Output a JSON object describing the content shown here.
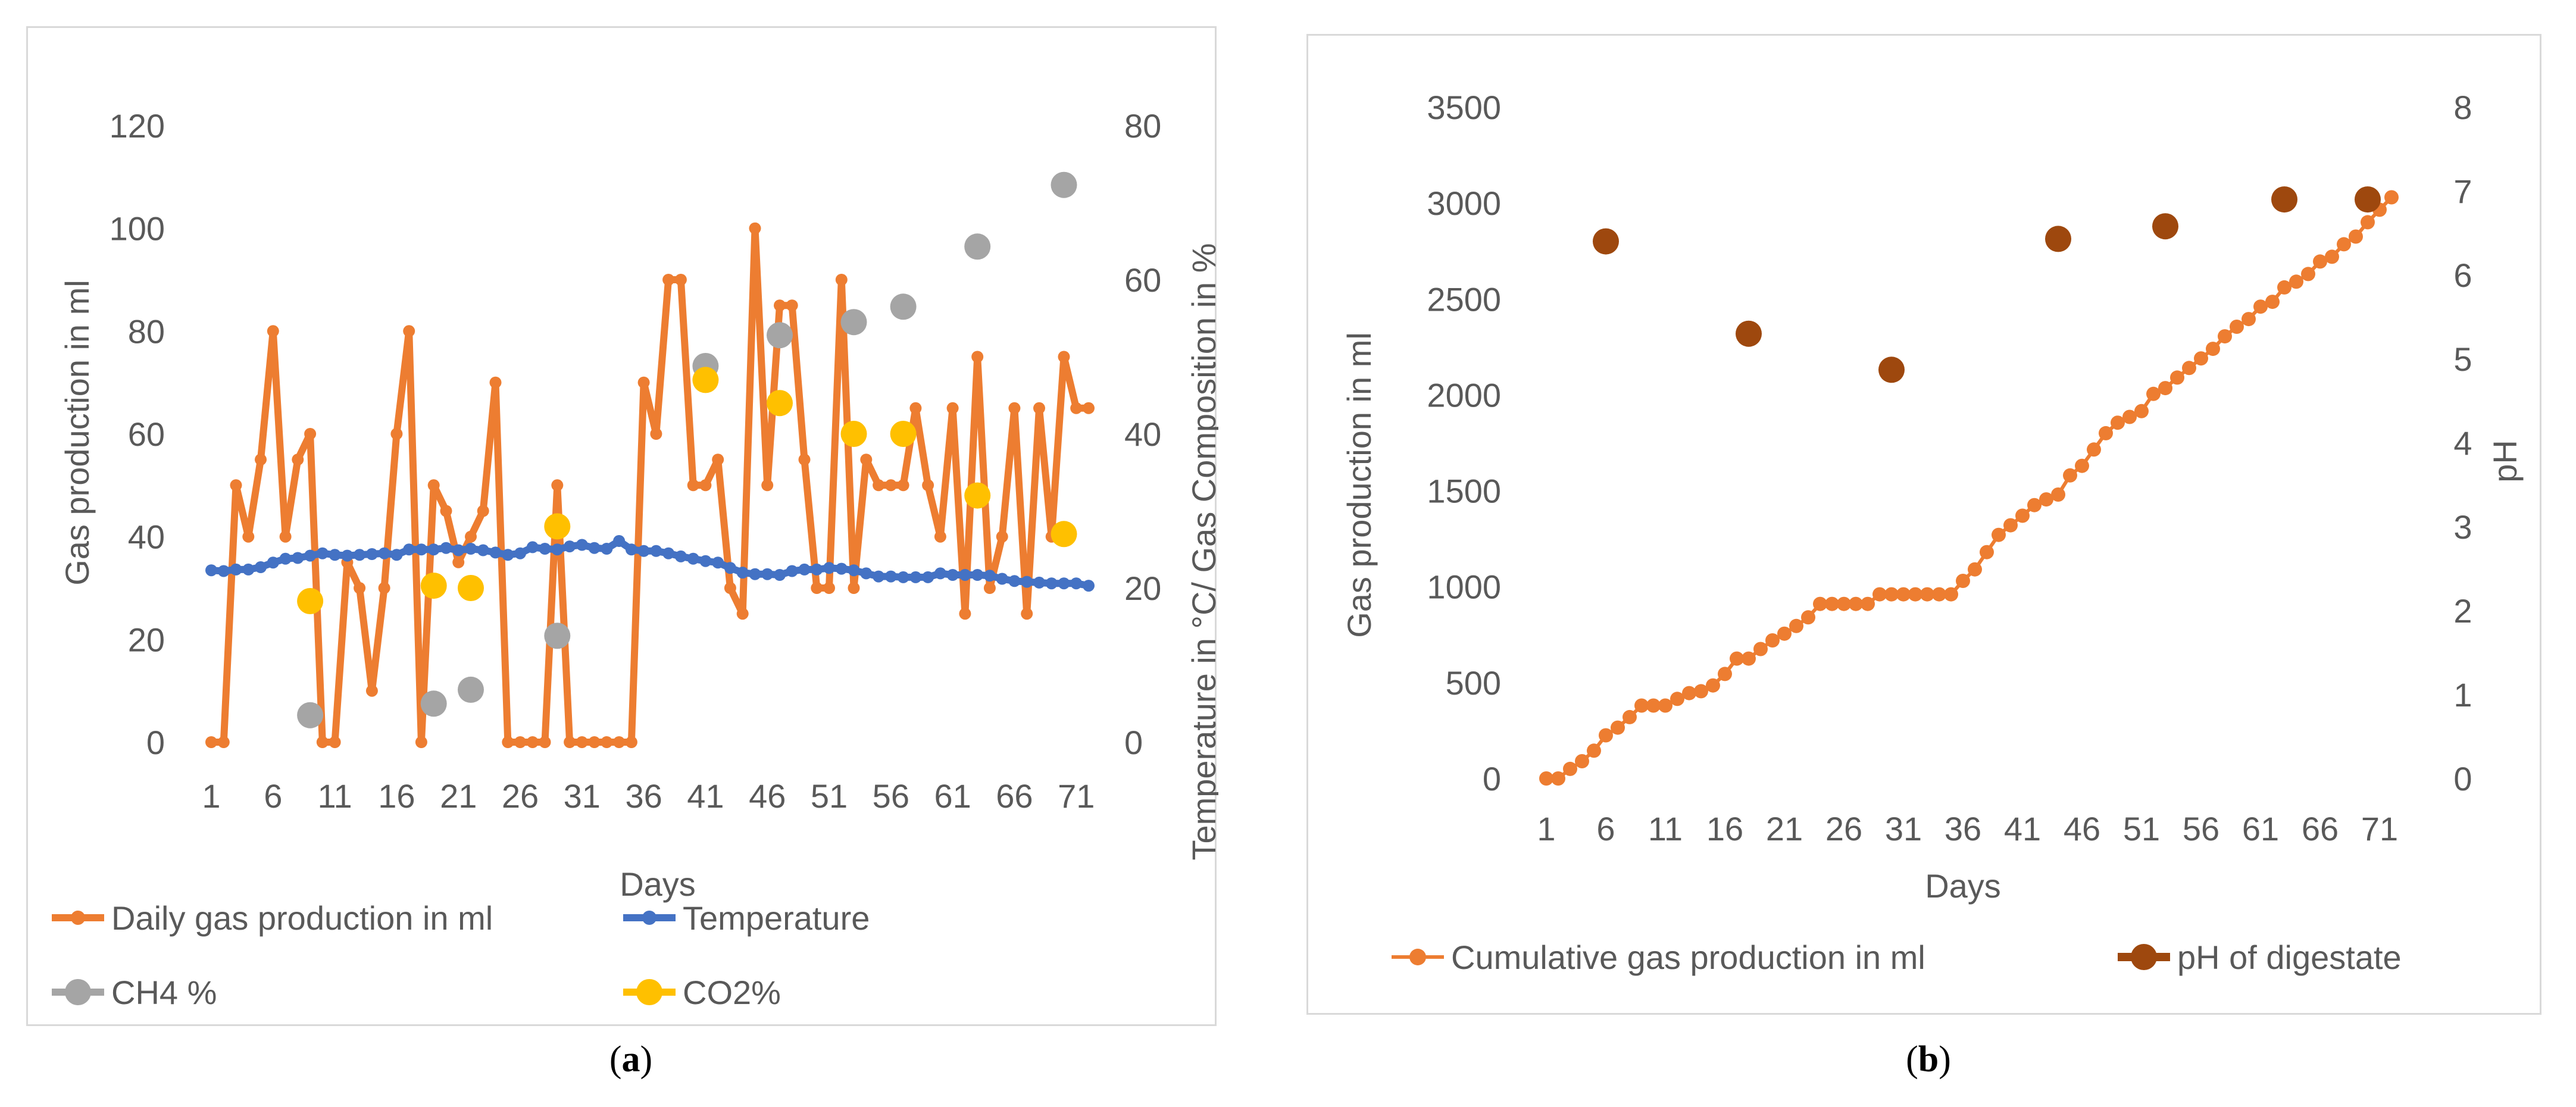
{
  "chart_data": [
    {
      "type": "line",
      "panel_label": "a",
      "xlabel": "Days",
      "ylabel_left": "Gas production in ml",
      "ylabel_right": "Temperature in °C/  Gas Composition in %",
      "ylim_left": [
        0,
        120
      ],
      "yticks_left": [
        "0",
        "20",
        "40",
        "60",
        "80",
        "100",
        "120"
      ],
      "ylim_right": [
        0,
        80
      ],
      "yticks_right": [
        "0",
        "20",
        "40",
        "60",
        "80"
      ],
      "xticks": [
        "1",
        "6",
        "11",
        "16",
        "21",
        "26",
        "31",
        "36",
        "41",
        "46",
        "51",
        "56",
        "61",
        "66",
        "71"
      ],
      "legend_position": "bottom",
      "series": [
        {
          "name": "Daily gas production in ml",
          "axis": "left",
          "color": "#ED7D31",
          "style": "line-marker",
          "x": [
            1,
            2,
            3,
            4,
            5,
            6,
            7,
            8,
            9,
            10,
            11,
            12,
            13,
            14,
            15,
            16,
            17,
            18,
            19,
            20,
            21,
            22,
            23,
            24,
            25,
            26,
            27,
            28,
            29,
            30,
            31,
            32,
            33,
            34,
            35,
            36,
            37,
            38,
            39,
            40,
            41,
            42,
            43,
            44,
            45,
            46,
            47,
            48,
            49,
            50,
            51,
            52,
            53,
            54,
            55,
            56,
            57,
            58,
            59,
            60,
            61,
            62,
            63,
            64,
            65,
            66,
            67,
            68,
            69,
            70,
            71,
            72
          ],
          "values": [
            0,
            0,
            50,
            40,
            55,
            80,
            40,
            55,
            60,
            0,
            0,
            35,
            30,
            10,
            30,
            60,
            80,
            0,
            50,
            45,
            35,
            40,
            45,
            70,
            0,
            0,
            0,
            0,
            50,
            0,
            0,
            0,
            0,
            0,
            0,
            70,
            60,
            90,
            90,
            50,
            50,
            55,
            30,
            25,
            100,
            50,
            85,
            85,
            55,
            30,
            30,
            90,
            30,
            55,
            50,
            50,
            50,
            65,
            50,
            40,
            65,
            25,
            75,
            30,
            40,
            65,
            25,
            65,
            40,
            75,
            65,
            65
          ]
        },
        {
          "name": "Temperature",
          "axis": "right",
          "color": "#4472C4",
          "style": "line-marker",
          "x": [
            1,
            2,
            3,
            4,
            5,
            6,
            7,
            8,
            9,
            10,
            11,
            12,
            13,
            14,
            15,
            16,
            17,
            18,
            19,
            20,
            21,
            22,
            23,
            24,
            25,
            26,
            27,
            28,
            29,
            30,
            31,
            32,
            33,
            34,
            35,
            36,
            37,
            38,
            39,
            40,
            41,
            42,
            43,
            44,
            45,
            46,
            47,
            48,
            49,
            50,
            51,
            52,
            53,
            54,
            55,
            56,
            57,
            58,
            59,
            60,
            61,
            62,
            63,
            64,
            65,
            66,
            67,
            68,
            69,
            70,
            71,
            72
          ],
          "values": [
            22.3,
            22.2,
            22.4,
            22.4,
            22.7,
            23.3,
            23.8,
            23.9,
            24.2,
            24.5,
            24.3,
            24.2,
            24.3,
            24.4,
            24.5,
            24.3,
            25.0,
            25.0,
            25.0,
            25.2,
            24.9,
            25.1,
            24.9,
            24.6,
            24.3,
            24.5,
            25.3,
            25.1,
            25.0,
            25.4,
            25.6,
            25.2,
            25.1,
            26.1,
            25.0,
            24.8,
            24.8,
            24.5,
            24.1,
            23.8,
            23.5,
            23.3,
            22.6,
            22.0,
            21.8,
            21.8,
            21.7,
            22.2,
            22.4,
            22.4,
            22.6,
            22.5,
            22.3,
            21.9,
            21.5,
            21.5,
            21.4,
            21.4,
            21.4,
            21.9,
            21.7,
            21.7,
            21.7,
            21.6,
            21.2,
            20.9,
            20.8,
            20.7,
            20.6,
            20.6,
            20.6,
            20.3
          ]
        },
        {
          "name": "CH4 %",
          "axis": "right",
          "color": "#A5A5A5",
          "style": "marker",
          "x": [
            9,
            19,
            22,
            29,
            41,
            47,
            53,
            57,
            63,
            70
          ],
          "values": [
            3.5,
            5.0,
            6.8,
            13.8,
            48.8,
            52.8,
            54.5,
            56.5,
            64.3,
            72.3
          ]
        },
        {
          "name": "CO2%",
          "axis": "right",
          "color": "#FFC000",
          "style": "marker",
          "x": [
            9,
            19,
            22,
            29,
            41,
            47,
            53,
            57,
            63,
            70
          ],
          "values": [
            18.3,
            20.3,
            20.0,
            28.0,
            47.0,
            44.0,
            40.0,
            40.0,
            32.0,
            27.0
          ]
        }
      ]
    },
    {
      "type": "line",
      "panel_label": "b",
      "xlabel": "Days",
      "ylabel_left": "Gas production in ml",
      "ylabel_right": "pH",
      "ylim_left": [
        0,
        3500
      ],
      "yticks_left": [
        "0",
        "500",
        "1000",
        "1500",
        "2000",
        "2500",
        "3000",
        "3500"
      ],
      "ylim_right": [
        0,
        8
      ],
      "yticks_right": [
        "0",
        "1",
        "2",
        "3",
        "4",
        "5",
        "6",
        "7",
        "8"
      ],
      "xticks": [
        "1",
        "6",
        "11",
        "16",
        "21",
        "26",
        "31",
        "36",
        "41",
        "46",
        "51",
        "56",
        "61",
        "66",
        "71"
      ],
      "legend_position": "bottom",
      "series": [
        {
          "name": "Cumulative gas production in ml",
          "axis": "left",
          "color": "#ED7D31",
          "style": "line-marker",
          "x": [
            1,
            2,
            3,
            4,
            5,
            6,
            7,
            8,
            9,
            10,
            11,
            12,
            13,
            14,
            15,
            16,
            17,
            18,
            19,
            20,
            21,
            22,
            23,
            24,
            25,
            26,
            27,
            28,
            29,
            30,
            31,
            32,
            33,
            34,
            35,
            36,
            37,
            38,
            39,
            40,
            41,
            42,
            43,
            44,
            45,
            46,
            47,
            48,
            49,
            50,
            51,
            52,
            53,
            54,
            55,
            56,
            57,
            58,
            59,
            60,
            61,
            62,
            63,
            64,
            65,
            66,
            67,
            68,
            69,
            70,
            71,
            72
          ],
          "values": [
            0,
            0,
            50,
            90,
            145,
            225,
            265,
            320,
            380,
            380,
            380,
            415,
            445,
            455,
            485,
            545,
            625,
            625,
            675,
            720,
            755,
            795,
            840,
            910,
            910,
            910,
            910,
            910,
            960,
            960,
            960,
            960,
            960,
            960,
            960,
            1030,
            1090,
            1180,
            1270,
            1320,
            1370,
            1425,
            1455,
            1480,
            1580,
            1630,
            1715,
            1800,
            1855,
            1885,
            1915,
            2005,
            2035,
            2090,
            2140,
            2190,
            2240,
            2305,
            2355,
            2395,
            2460,
            2485,
            2560,
            2590,
            2630,
            2695,
            2720,
            2785,
            2825,
            2900,
            2965,
            3030
          ]
        },
        {
          "name": "pH of digestate",
          "axis": "right",
          "color": "#9E480E",
          "style": "marker",
          "x": [
            6,
            18,
            30,
            44,
            53,
            63,
            70
          ],
          "values": [
            6.4,
            5.3,
            4.87,
            6.43,
            6.58,
            6.9,
            6.9
          ]
        }
      ]
    }
  ]
}
